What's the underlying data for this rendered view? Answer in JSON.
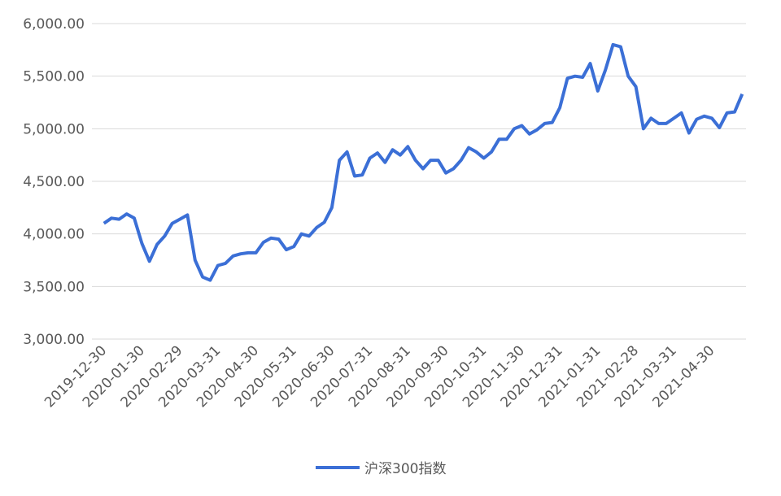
{
  "chart_data": {
    "type": "line",
    "x": [
      "2019-12-30",
      null,
      null,
      null,
      null,
      "2020-01-30",
      null,
      null,
      null,
      null,
      "2020-02-29",
      null,
      null,
      null,
      null,
      "2020-03-31",
      null,
      null,
      null,
      null,
      "2020-04-30",
      null,
      null,
      null,
      null,
      "2020-05-31",
      null,
      null,
      null,
      null,
      "2020-06-30",
      null,
      null,
      null,
      null,
      "2020-07-31",
      null,
      null,
      null,
      null,
      "2020-08-31",
      null,
      null,
      null,
      null,
      "2020-09-30",
      null,
      null,
      null,
      null,
      "2020-10-31",
      null,
      null,
      null,
      null,
      "2020-11-30",
      null,
      null,
      null,
      null,
      "2020-12-31",
      null,
      null,
      null,
      null,
      "2021-01-31",
      null,
      null,
      null,
      null,
      "2021-02-28",
      null,
      null,
      null,
      null,
      "2021-03-31",
      null,
      null,
      null,
      null,
      "2021-04-30",
      null,
      null,
      null,
      null
    ],
    "series": [
      {
        "name": "沪深300指数",
        "color": "#3b6fd6",
        "values": [
          4100,
          4150,
          4140,
          4190,
          4150,
          3910,
          3740,
          3900,
          3980,
          4100,
          4140,
          4180,
          3750,
          3590,
          3560,
          3700,
          3720,
          3790,
          3810,
          3820,
          3820,
          3920,
          3960,
          3950,
          3850,
          3880,
          4000,
          3980,
          4060,
          4110,
          4250,
          4700,
          4780,
          4550,
          4560,
          4720,
          4770,
          4680,
          4800,
          4750,
          4830,
          4700,
          4620,
          4700,
          4700,
          4580,
          4620,
          4700,
          4820,
          4780,
          4720,
          4780,
          4900,
          4900,
          5000,
          5030,
          4950,
          4990,
          5050,
          5060,
          5200,
          5480,
          5500,
          5490,
          5620,
          5360,
          5560,
          5800,
          5780,
          5500,
          5400,
          5000,
          5100,
          5050,
          5050,
          5100,
          5150,
          4960,
          5090,
          5120,
          5100,
          5010,
          5150,
          5160,
          5330
        ]
      }
    ],
    "ylim": [
      3000,
      6000
    ],
    "yticks": [
      {
        "value": 3000,
        "label": "3,000.00"
      },
      {
        "value": 3500,
        "label": "3,500.00"
      },
      {
        "value": 4000,
        "label": "4,000.00"
      },
      {
        "value": 4500,
        "label": "4,500.00"
      },
      {
        "value": 5000,
        "label": "5,000.00"
      },
      {
        "value": 5500,
        "label": "5,500.00"
      },
      {
        "value": 6000,
        "label": "6,000.00"
      }
    ],
    "grid": true,
    "legend": "bottom"
  }
}
